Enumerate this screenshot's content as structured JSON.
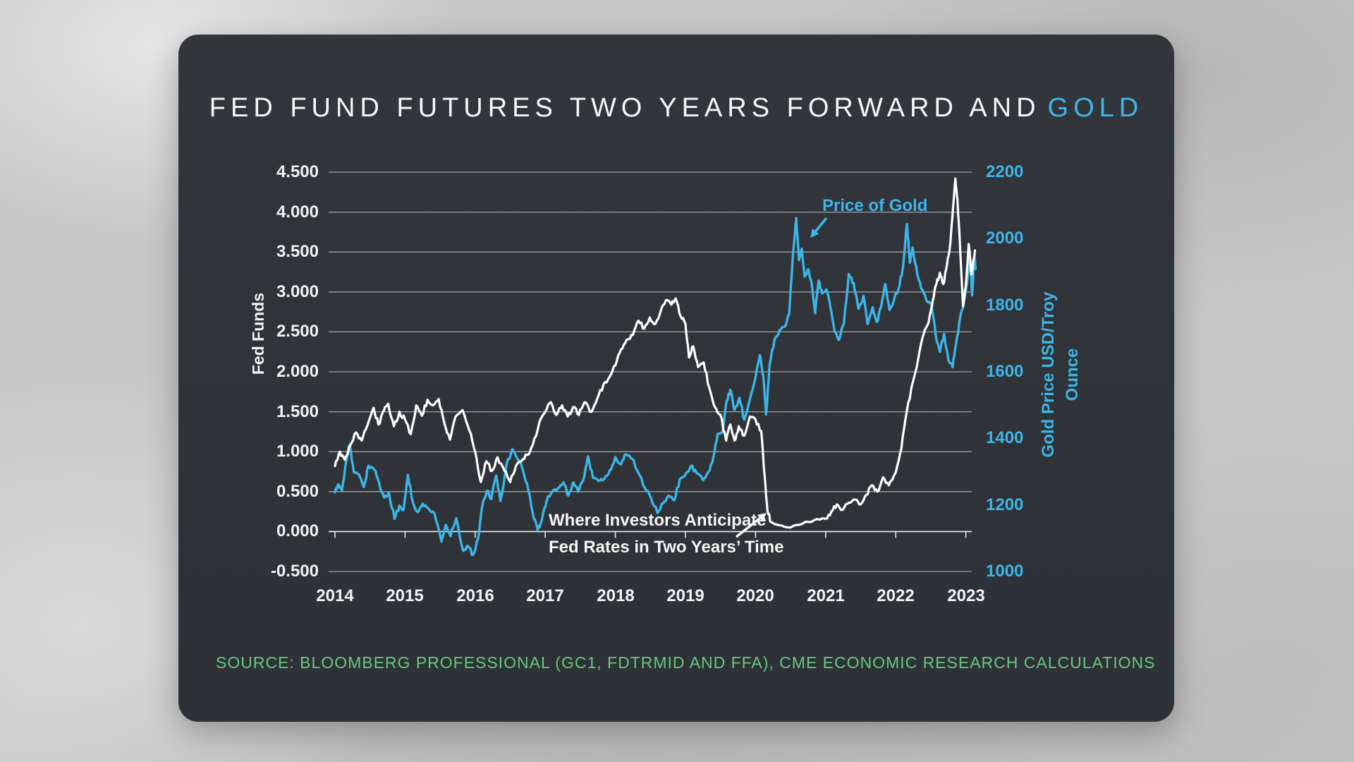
{
  "title": {
    "main": "FED FUND FUTURES TWO YEARS FORWARD AND",
    "highlight": "GOLD"
  },
  "source_text": "SOURCE: BLOOMBERG PROFESSIONAL (GC1, FDTRMID AND FFA), CME ECONOMIC RESEARCH CALCULATIONS",
  "colors": {
    "accent_blue": "#3db5e8",
    "accent_green": "#67c87e",
    "line_white": "#ffffff",
    "card_bg": "#2f3338",
    "gridline": "#9ea2a5",
    "axis_line": "#e8eaeb"
  },
  "chart_data": {
    "type": "line",
    "title": "Fed Fund Futures Two Years Forward and Gold",
    "x_axis": {
      "tick_labels": [
        "2014",
        "2015",
        "2016",
        "2017",
        "2018",
        "2019",
        "2020",
        "2021",
        "2022",
        "2023"
      ],
      "tick_years": [
        2014,
        2015,
        2016,
        2017,
        2018,
        2019,
        2020,
        2021,
        2022,
        2023
      ],
      "unit": "decimal_year"
    },
    "y_left": {
      "label": "Fed Funds",
      "tick_labels": [
        "4.500",
        "4.000",
        "3.500",
        "3.000",
        "2.500",
        "2.000",
        "1.500",
        "1.000",
        "0.500",
        "0.000",
        "-0.500"
      ],
      "tick_values": [
        4.5,
        4.0,
        3.5,
        3.0,
        2.5,
        2.0,
        1.5,
        1.0,
        0.5,
        0.0,
        -0.5
      ],
      "range": [
        -0.5,
        4.5
      ],
      "axis_cross_value": 0.0
    },
    "y_right": {
      "label": "Gold Price USD/Troy Ounce",
      "tick_labels": [
        "2200",
        "2000",
        "1800",
        "1600",
        "1400",
        "1200",
        "1000"
      ],
      "tick_values": [
        2200,
        2000,
        1800,
        1600,
        1400,
        1200,
        1000
      ],
      "range": [
        1000,
        2200
      ]
    },
    "grid": true,
    "annotations": [
      {
        "text": "Price of Gold",
        "series": "gold"
      },
      {
        "text": "Where Investors Anticipate",
        "text2": "Fed Rates in Two Years’ Time",
        "series": "fed"
      }
    ],
    "series": [
      {
        "name": "Fed Fund Futures Two Years Forward",
        "axis": "left",
        "color_key": "line_white",
        "points": [
          [
            2014.0,
            0.82
          ],
          [
            2014.07,
            1.0
          ],
          [
            2014.14,
            0.9
          ],
          [
            2014.22,
            1.08
          ],
          [
            2014.3,
            1.24
          ],
          [
            2014.38,
            1.14
          ],
          [
            2014.46,
            1.32
          ],
          [
            2014.55,
            1.55
          ],
          [
            2014.62,
            1.34
          ],
          [
            2014.7,
            1.52
          ],
          [
            2014.76,
            1.6
          ],
          [
            2014.84,
            1.32
          ],
          [
            2014.92,
            1.5
          ],
          [
            2015.0,
            1.4
          ],
          [
            2015.08,
            1.22
          ],
          [
            2015.16,
            1.58
          ],
          [
            2015.24,
            1.45
          ],
          [
            2015.32,
            1.65
          ],
          [
            2015.4,
            1.58
          ],
          [
            2015.48,
            1.66
          ],
          [
            2015.56,
            1.36
          ],
          [
            2015.64,
            1.15
          ],
          [
            2015.72,
            1.44
          ],
          [
            2015.82,
            1.52
          ],
          [
            2015.92,
            1.26
          ],
          [
            2016.0,
            1.0
          ],
          [
            2016.08,
            0.62
          ],
          [
            2016.16,
            0.88
          ],
          [
            2016.24,
            0.76
          ],
          [
            2016.32,
            0.93
          ],
          [
            2016.42,
            0.76
          ],
          [
            2016.5,
            0.62
          ],
          [
            2016.58,
            0.82
          ],
          [
            2016.66,
            0.88
          ],
          [
            2016.74,
            0.96
          ],
          [
            2016.82,
            1.08
          ],
          [
            2016.92,
            1.38
          ],
          [
            2017.0,
            1.5
          ],
          [
            2017.08,
            1.62
          ],
          [
            2017.16,
            1.46
          ],
          [
            2017.24,
            1.58
          ],
          [
            2017.32,
            1.44
          ],
          [
            2017.4,
            1.56
          ],
          [
            2017.48,
            1.46
          ],
          [
            2017.56,
            1.62
          ],
          [
            2017.66,
            1.5
          ],
          [
            2017.74,
            1.66
          ],
          [
            2017.83,
            1.84
          ],
          [
            2017.92,
            1.94
          ],
          [
            2018.0,
            2.08
          ],
          [
            2018.08,
            2.28
          ],
          [
            2018.16,
            2.4
          ],
          [
            2018.25,
            2.46
          ],
          [
            2018.33,
            2.64
          ],
          [
            2018.41,
            2.54
          ],
          [
            2018.49,
            2.68
          ],
          [
            2018.57,
            2.6
          ],
          [
            2018.66,
            2.8
          ],
          [
            2018.74,
            2.9
          ],
          [
            2018.8,
            2.84
          ],
          [
            2018.86,
            2.92
          ],
          [
            2018.93,
            2.7
          ],
          [
            2019.0,
            2.6
          ],
          [
            2019.05,
            2.18
          ],
          [
            2019.11,
            2.32
          ],
          [
            2019.18,
            2.06
          ],
          [
            2019.26,
            2.12
          ],
          [
            2019.34,
            1.8
          ],
          [
            2019.42,
            1.56
          ],
          [
            2019.5,
            1.46
          ],
          [
            2019.58,
            1.14
          ],
          [
            2019.64,
            1.34
          ],
          [
            2019.7,
            1.14
          ],
          [
            2019.76,
            1.32
          ],
          [
            2019.84,
            1.2
          ],
          [
            2019.92,
            1.44
          ],
          [
            2020.0,
            1.4
          ],
          [
            2020.08,
            1.26
          ],
          [
            2020.13,
            0.7
          ],
          [
            2020.17,
            0.26
          ],
          [
            2020.22,
            0.12
          ],
          [
            2020.33,
            0.08
          ],
          [
            2020.5,
            0.05
          ],
          [
            2020.67,
            0.1
          ],
          [
            2020.83,
            0.14
          ],
          [
            2021.0,
            0.16
          ],
          [
            2021.08,
            0.25
          ],
          [
            2021.16,
            0.34
          ],
          [
            2021.24,
            0.27
          ],
          [
            2021.33,
            0.36
          ],
          [
            2021.42,
            0.4
          ],
          [
            2021.5,
            0.34
          ],
          [
            2021.58,
            0.46
          ],
          [
            2021.66,
            0.58
          ],
          [
            2021.74,
            0.5
          ],
          [
            2021.82,
            0.68
          ],
          [
            2021.9,
            0.58
          ],
          [
            2022.0,
            0.74
          ],
          [
            2022.08,
            1.04
          ],
          [
            2022.16,
            1.52
          ],
          [
            2022.24,
            1.86
          ],
          [
            2022.32,
            2.16
          ],
          [
            2022.4,
            2.48
          ],
          [
            2022.47,
            2.62
          ],
          [
            2022.53,
            2.9
          ],
          [
            2022.58,
            3.1
          ],
          [
            2022.63,
            3.24
          ],
          [
            2022.68,
            3.1
          ],
          [
            2022.73,
            3.34
          ],
          [
            2022.78,
            3.62
          ],
          [
            2022.82,
            4.08
          ],
          [
            2022.85,
            4.42
          ],
          [
            2022.88,
            4.16
          ],
          [
            2022.92,
            3.52
          ],
          [
            2022.96,
            2.82
          ],
          [
            2023.0,
            3.08
          ],
          [
            2023.04,
            3.6
          ],
          [
            2023.08,
            3.22
          ],
          [
            2023.13,
            3.52
          ]
        ]
      },
      {
        "name": "Price of Gold",
        "axis": "right",
        "color_key": "accent_blue",
        "points": [
          [
            2014.0,
            1238
          ],
          [
            2014.05,
            1262
          ],
          [
            2014.1,
            1244
          ],
          [
            2014.16,
            1330
          ],
          [
            2014.21,
            1382
          ],
          [
            2014.27,
            1298
          ],
          [
            2014.34,
            1292
          ],
          [
            2014.41,
            1254
          ],
          [
            2014.48,
            1318
          ],
          [
            2014.56,
            1306
          ],
          [
            2014.63,
            1266
          ],
          [
            2014.7,
            1222
          ],
          [
            2014.77,
            1238
          ],
          [
            2014.85,
            1158
          ],
          [
            2014.92,
            1198
          ],
          [
            2014.98,
            1186
          ],
          [
            2015.04,
            1290
          ],
          [
            2015.11,
            1210
          ],
          [
            2015.18,
            1178
          ],
          [
            2015.25,
            1204
          ],
          [
            2015.33,
            1190
          ],
          [
            2015.42,
            1174
          ],
          [
            2015.52,
            1090
          ],
          [
            2015.58,
            1140
          ],
          [
            2015.65,
            1106
          ],
          [
            2015.73,
            1160
          ],
          [
            2015.83,
            1062
          ],
          [
            2015.9,
            1076
          ],
          [
            2015.97,
            1050
          ],
          [
            2016.04,
            1098
          ],
          [
            2016.1,
            1196
          ],
          [
            2016.17,
            1242
          ],
          [
            2016.23,
            1218
          ],
          [
            2016.3,
            1288
          ],
          [
            2016.36,
            1212
          ],
          [
            2016.45,
            1324
          ],
          [
            2016.53,
            1368
          ],
          [
            2016.6,
            1340
          ],
          [
            2016.67,
            1312
          ],
          [
            2016.74,
            1264
          ],
          [
            2016.82,
            1178
          ],
          [
            2016.89,
            1126
          ],
          [
            2016.95,
            1154
          ],
          [
            2017.02,
            1212
          ],
          [
            2017.1,
            1240
          ],
          [
            2017.18,
            1250
          ],
          [
            2017.26,
            1268
          ],
          [
            2017.33,
            1228
          ],
          [
            2017.4,
            1268
          ],
          [
            2017.47,
            1240
          ],
          [
            2017.54,
            1274
          ],
          [
            2017.61,
            1346
          ],
          [
            2017.68,
            1282
          ],
          [
            2017.76,
            1272
          ],
          [
            2017.84,
            1278
          ],
          [
            2017.92,
            1304
          ],
          [
            2018.0,
            1344
          ],
          [
            2018.08,
            1322
          ],
          [
            2018.15,
            1352
          ],
          [
            2018.24,
            1338
          ],
          [
            2018.33,
            1296
          ],
          [
            2018.42,
            1252
          ],
          [
            2018.51,
            1220
          ],
          [
            2018.6,
            1176
          ],
          [
            2018.68,
            1204
          ],
          [
            2018.76,
            1228
          ],
          [
            2018.84,
            1214
          ],
          [
            2018.92,
            1278
          ],
          [
            2019.0,
            1292
          ],
          [
            2019.08,
            1318
          ],
          [
            2019.16,
            1296
          ],
          [
            2019.25,
            1274
          ],
          [
            2019.33,
            1300
          ],
          [
            2019.4,
            1346
          ],
          [
            2019.46,
            1414
          ],
          [
            2019.53,
            1418
          ],
          [
            2019.59,
            1514
          ],
          [
            2019.64,
            1546
          ],
          [
            2019.7,
            1486
          ],
          [
            2019.77,
            1522
          ],
          [
            2019.84,
            1456
          ],
          [
            2019.92,
            1518
          ],
          [
            2020.0,
            1584
          ],
          [
            2020.06,
            1650
          ],
          [
            2020.11,
            1588
          ],
          [
            2020.15,
            1472
          ],
          [
            2020.2,
            1622
          ],
          [
            2020.27,
            1696
          ],
          [
            2020.34,
            1724
          ],
          [
            2020.42,
            1736
          ],
          [
            2020.48,
            1774
          ],
          [
            2020.53,
            1942
          ],
          [
            2020.58,
            2062
          ],
          [
            2020.62,
            1936
          ],
          [
            2020.66,
            1970
          ],
          [
            2020.7,
            1886
          ],
          [
            2020.75,
            1908
          ],
          [
            2020.8,
            1866
          ],
          [
            2020.85,
            1776
          ],
          [
            2020.9,
            1874
          ],
          [
            2020.95,
            1836
          ],
          [
            2021.01,
            1848
          ],
          [
            2021.07,
            1790
          ],
          [
            2021.13,
            1720
          ],
          [
            2021.19,
            1696
          ],
          [
            2021.26,
            1744
          ],
          [
            2021.33,
            1894
          ],
          [
            2021.4,
            1866
          ],
          [
            2021.47,
            1790
          ],
          [
            2021.54,
            1828
          ],
          [
            2021.6,
            1744
          ],
          [
            2021.67,
            1794
          ],
          [
            2021.73,
            1750
          ],
          [
            2021.79,
            1794
          ],
          [
            2021.85,
            1864
          ],
          [
            2021.91,
            1786
          ],
          [
            2021.97,
            1812
          ],
          [
            2022.04,
            1850
          ],
          [
            2022.1,
            1910
          ],
          [
            2022.16,
            2044
          ],
          [
            2022.2,
            1928
          ],
          [
            2022.24,
            1974
          ],
          [
            2022.31,
            1890
          ],
          [
            2022.38,
            1846
          ],
          [
            2022.45,
            1810
          ],
          [
            2022.51,
            1806
          ],
          [
            2022.57,
            1710
          ],
          [
            2022.63,
            1660
          ],
          [
            2022.69,
            1714
          ],
          [
            2022.75,
            1636
          ],
          [
            2022.81,
            1614
          ],
          [
            2022.86,
            1684
          ],
          [
            2022.92,
            1764
          ],
          [
            2022.97,
            1808
          ],
          [
            2023.02,
            1874
          ],
          [
            2023.06,
            1940
          ],
          [
            2023.09,
            1830
          ],
          [
            2023.12,
            1950
          ],
          [
            2023.14,
            1910
          ]
        ]
      }
    ]
  }
}
